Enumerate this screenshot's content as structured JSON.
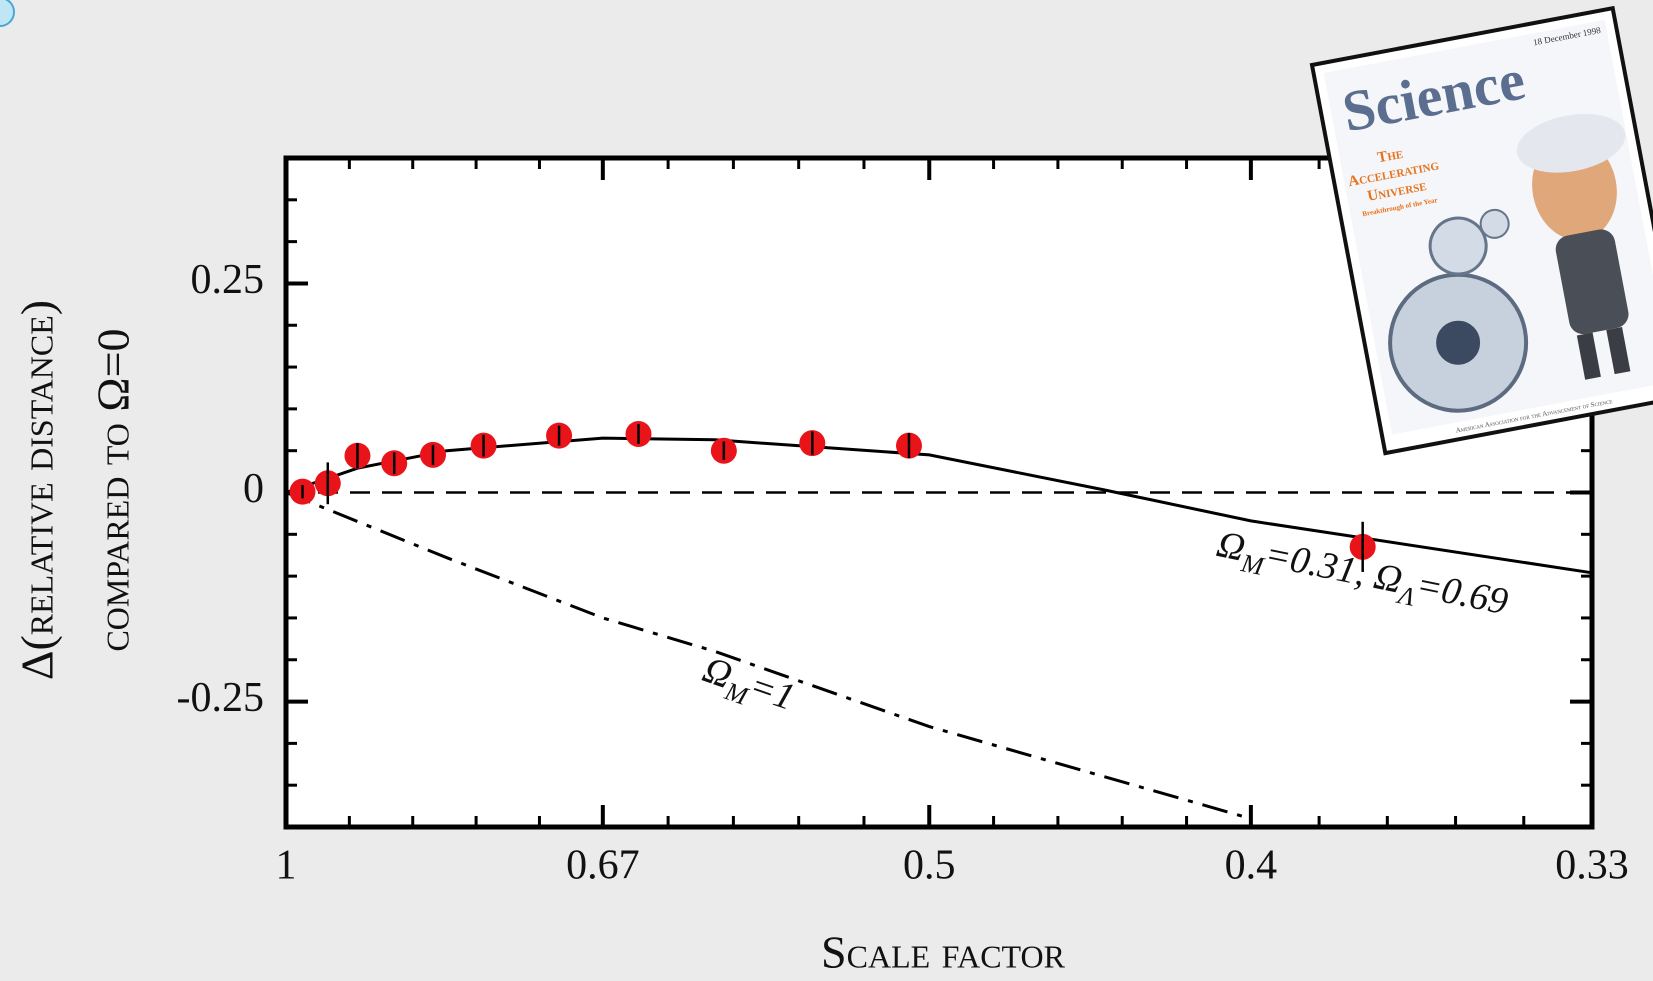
{
  "chart_data": {
    "type": "scatter",
    "xlabel": "Scale factor",
    "ylabel": [
      "Δ(relative distance)",
      "compared to Ω=0"
    ],
    "xscale": "reciprocal",
    "xlim": [
      1,
      0.33
    ],
    "ylim": [
      -0.4,
      0.4
    ],
    "xticks": [
      1,
      0.67,
      0.5,
      0.4,
      0.33
    ],
    "yticks": [
      -0.25,
      0,
      0.25
    ],
    "baseline": {
      "value": 0,
      "style": "dashed"
    },
    "series": [
      {
        "color": "#e8141a",
        "x": [
          0.975,
          0.939,
          0.9,
          0.856,
          0.814,
          0.765,
          0.702,
          0.646,
          0.595,
          0.55,
          0.508,
          0.374
        ],
        "values": [
          0.001,
          0.011,
          0.044,
          0.035,
          0.045,
          0.056,
          0.068,
          0.07,
          0.05,
          0.059,
          0.056,
          -0.065
        ],
        "errors": [
          0.008,
          0.025,
          0.015,
          0.013,
          0.012,
          0.013,
          0.012,
          0.012,
          0.011,
          0.014,
          0.015,
          0.03
        ]
      }
    ],
    "models": [
      {
        "label": [
          "Ω",
          "M",
          "=0.31, Ω",
          "Λ",
          "=0.69"
        ],
        "style": "solid",
        "x": [
          1,
          0.9,
          0.8,
          0.67,
          0.6,
          0.5,
          0.44,
          0.4,
          0.33
        ],
        "values": [
          0,
          0.029,
          0.05,
          0.065,
          0.063,
          0.045,
          0.003,
          -0.034,
          -0.096
        ]
      },
      {
        "label": [
          "Ω",
          "M",
          "=1"
        ],
        "style": "dashdot",
        "x": [
          1,
          0.8,
          0.67,
          0.6,
          0.5,
          0.4
        ],
        "values": [
          0,
          -0.078,
          -0.15,
          -0.19,
          -0.28,
          -0.39
        ]
      }
    ]
  },
  "cover": {
    "date": "18 December 1998",
    "title": "Science",
    "headline": [
      "The",
      "Accelerating",
      "Universe"
    ],
    "subhead": "Breakthrough of the Year",
    "footer": "American Association for the Advancement of Science"
  }
}
